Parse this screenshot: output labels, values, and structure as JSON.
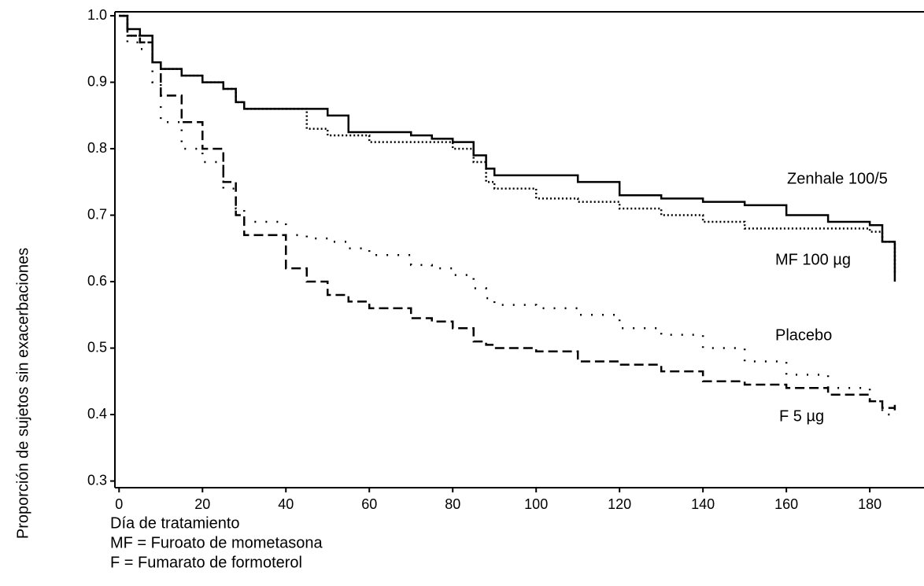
{
  "chart_data": {
    "type": "line",
    "step": true,
    "ylabel": "Proporción de sujetos sin exacerbaciones",
    "xlabel": "Día de tratamiento",
    "notes": [
      "MF = Furoato de mometasona",
      "F = Fumarato de formoterol"
    ],
    "x": [
      0,
      2,
      5,
      8,
      10,
      15,
      20,
      25,
      28,
      30,
      40,
      45,
      50,
      55,
      60,
      70,
      75,
      80,
      85,
      88,
      90,
      100,
      110,
      120,
      130,
      140,
      150,
      160,
      170,
      180,
      183,
      186
    ],
    "series": [
      {
        "name": "Zenhale 100/5",
        "color": "#000000",
        "line_style": "solid",
        "values": [
          1.0,
          0.98,
          0.97,
          0.93,
          0.92,
          0.91,
          0.9,
          0.89,
          0.87,
          0.86,
          0.86,
          0.86,
          0.85,
          0.825,
          0.825,
          0.82,
          0.815,
          0.81,
          0.79,
          0.77,
          0.76,
          0.76,
          0.75,
          0.73,
          0.725,
          0.72,
          0.715,
          0.7,
          0.69,
          0.685,
          0.66,
          0.6
        ]
      },
      {
        "name": "MF 100 µg",
        "color": "#000000",
        "line_style": "dotted",
        "values": [
          1.0,
          0.97,
          0.96,
          0.93,
          0.92,
          0.91,
          0.9,
          0.89,
          0.87,
          0.86,
          0.86,
          0.83,
          0.82,
          0.82,
          0.81,
          0.81,
          0.81,
          0.8,
          0.78,
          0.75,
          0.74,
          0.725,
          0.72,
          0.71,
          0.7,
          0.69,
          0.68,
          0.68,
          0.68,
          0.675,
          0.66,
          0.61
        ]
      },
      {
        "name": "Placebo",
        "color": "#000000",
        "line_style": "sparse-dotted",
        "values": [
          1.0,
          0.96,
          0.95,
          0.9,
          0.84,
          0.8,
          0.78,
          0.74,
          0.71,
          0.69,
          0.67,
          0.665,
          0.66,
          0.65,
          0.64,
          0.625,
          0.62,
          0.61,
          0.59,
          0.575,
          0.565,
          0.56,
          0.55,
          0.53,
          0.52,
          0.5,
          0.48,
          0.46,
          0.44,
          0.42,
          0.4,
          0.41
        ]
      },
      {
        "name": "F 5 µg",
        "color": "#000000",
        "line_style": "dashed",
        "values": [
          1.0,
          0.97,
          0.96,
          0.93,
          0.88,
          0.84,
          0.8,
          0.75,
          0.7,
          0.67,
          0.62,
          0.6,
          0.58,
          0.57,
          0.56,
          0.545,
          0.54,
          0.53,
          0.51,
          0.505,
          0.5,
          0.495,
          0.48,
          0.475,
          0.465,
          0.45,
          0.445,
          0.44,
          0.43,
          0.42,
          0.41,
          0.415
        ]
      }
    ],
    "xlim": [
      -1,
      193
    ],
    "ylim": [
      0.29,
      1.006
    ],
    "xticks": [
      0,
      20,
      40,
      60,
      80,
      100,
      120,
      140,
      160,
      180
    ],
    "yticks": [
      0.3,
      0.4,
      0.5,
      0.6,
      0.7,
      0.8,
      0.9,
      {
        "value": 1,
        "label": "1.0"
      }
    ],
    "grid": false
  }
}
